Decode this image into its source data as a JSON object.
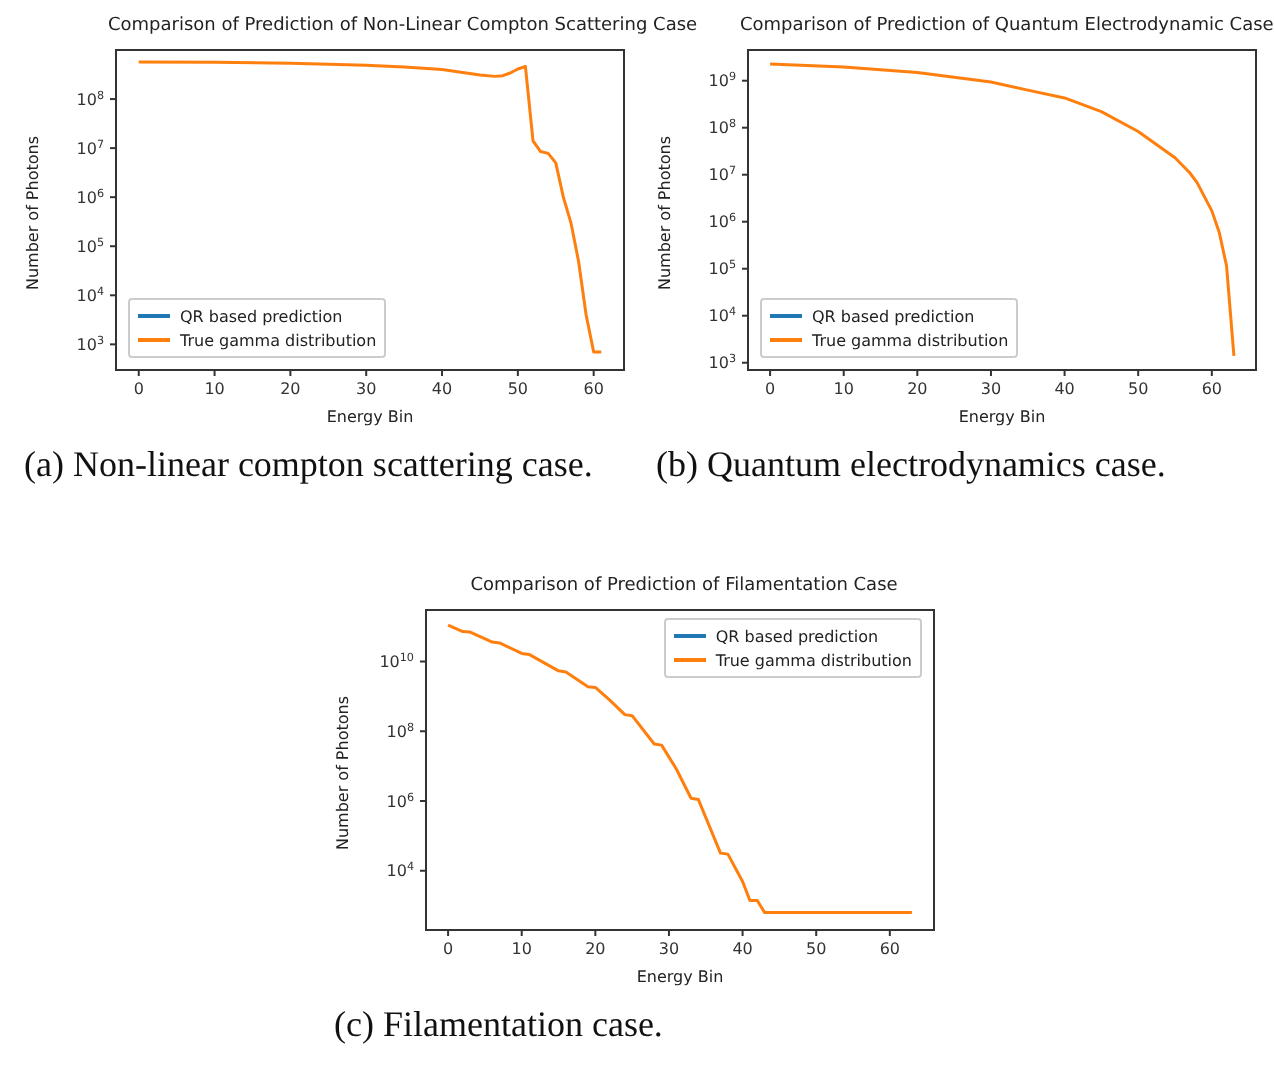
{
  "chart_data": [
    {
      "type": "line",
      "title": "Comparison of Prediction of Non-Linear Compton Scattering Case",
      "xlabel": "Energy Bin",
      "ylabel": "Number of Photons",
      "x": [
        0,
        10,
        20,
        30,
        35,
        40,
        45,
        47,
        48,
        49,
        50,
        51,
        52,
        53,
        54,
        55,
        56,
        57,
        58,
        59,
        60,
        61
      ],
      "series": [
        {
          "name": "QR based prediction",
          "color": "#1f77b4",
          "values": [
            null,
            null,
            null,
            null,
            null,
            null,
            null,
            null,
            null,
            null,
            null,
            null,
            null,
            null,
            null,
            null,
            null,
            null,
            null,
            null,
            null,
            null
          ]
        },
        {
          "name": "True gamma distribution",
          "color": "#ff7f0e",
          "values": [
            570000000,
            560000000,
            540000000,
            490000000,
            450000000,
            400000000,
            310000000,
            290000000,
            300000000,
            340000000,
            410000000,
            460000000,
            14000000,
            8500000,
            7800000,
            5000000,
            1000000,
            300000,
            50000,
            4000,
            700,
            700
          ]
        }
      ],
      "log": "y",
      "xlim": [
        -3,
        64
      ],
      "xticks": [
        0,
        10,
        20,
        30,
        40,
        50,
        60
      ],
      "ylim": [
        300,
        1000000000
      ],
      "yticks": [
        {
          "value": 1000,
          "label": "10$^{3}$"
        },
        {
          "value": 10000,
          "label": "10$^{4}$"
        },
        {
          "value": 100000,
          "label": "10$^{5}$"
        },
        {
          "value": 1000000,
          "label": "10$^{6}$"
        },
        {
          "value": 10000000,
          "label": "10$^{7}$"
        },
        {
          "value": 100000000,
          "label": "10$^{8}$"
        }
      ],
      "legend": "bottom left",
      "annotations": [
        "(a) Non-linear compton scattering case."
      ]
    },
    {
      "type": "line",
      "title": "Comparison of Prediction of Quantum Electrodynamic Case",
      "xlabel": "Energy Bin",
      "ylabel": "Number of Photons",
      "x": [
        0,
        10,
        20,
        30,
        35,
        40,
        45,
        50,
        55,
        57,
        58,
        60,
        61,
        62,
        63
      ],
      "series": [
        {
          "name": "QR based prediction",
          "color": "#1f77b4",
          "values": [
            null,
            null,
            null,
            null,
            null,
            null,
            null,
            null,
            null,
            null,
            null,
            null,
            null,
            null,
            null
          ]
        },
        {
          "name": "True gamma distribution",
          "color": "#ff7f0e",
          "values": [
            2260000000,
            1950000000,
            1500000000,
            940000000,
            630000000,
            430000000,
            220000000,
            83000000,
            23000000,
            11000000,
            6800000,
            1700000,
            600000,
            115000,
            1400
          ]
        }
      ],
      "log": "y",
      "xlim": [
        -3,
        66
      ],
      "xticks": [
        0,
        10,
        20,
        30,
        40,
        50,
        60
      ],
      "ylim": [
        700,
        4500000000
      ],
      "yticks": [
        {
          "value": 1000,
          "label": "10$^{3}$"
        },
        {
          "value": 10000,
          "label": "10$^{4}$"
        },
        {
          "value": 100000,
          "label": "10$^{5}$"
        },
        {
          "value": 1000000,
          "label": "10$^{6}$"
        },
        {
          "value": 10000000,
          "label": "10$^{7}$"
        },
        {
          "value": 100000000,
          "label": "10$^{8}$"
        },
        {
          "value": 1000000000,
          "label": "10$^{9}$"
        }
      ],
      "legend": "bottom left",
      "annotations": [
        "(b) Quantum electrodynamics case."
      ]
    },
    {
      "type": "line",
      "title": "Comparison of Prediction of Filamentation Case",
      "xlabel": "Energy Bin",
      "ylabel": "Number of Photons",
      "x": [
        0,
        2,
        3,
        6,
        7,
        10,
        11,
        15,
        16,
        19,
        20,
        22,
        24,
        25,
        28,
        29,
        31,
        33,
        34,
        37,
        38,
        40,
        41,
        42,
        43,
        63
      ],
      "series": [
        {
          "name": "QR based prediction",
          "color": "#1f77b4",
          "values": [
            null,
            null,
            null,
            null,
            null,
            null,
            null,
            null,
            null,
            null,
            null,
            null,
            null,
            null,
            null,
            null,
            null,
            null,
            null,
            null,
            null,
            null,
            null,
            null,
            null,
            null
          ]
        },
        {
          "name": "True gamma distribution",
          "color": "#ff7f0e",
          "values": [
            110000000000,
            72000000000,
            70000000000,
            36000000000,
            34000000000,
            17000000000,
            16000000000,
            5400000000,
            5000000000,
            1900000000,
            1800000000,
            770000000,
            300000000,
            280000000,
            43000000,
            40000000,
            8300000,
            1200000,
            1100000,
            32000,
            30000,
            4900,
            1400,
            1400,
            630,
            630
          ]
        }
      ],
      "log": "y",
      "xlim": [
        -3,
        66
      ],
      "xticks": [
        0,
        10,
        20,
        30,
        40,
        50,
        60
      ],
      "ylim": [
        200,
        300000000000
      ],
      "yticks": [
        {
          "value": 10000,
          "label": "10$^{4}$"
        },
        {
          "value": 1000000,
          "label": "10$^{6}$"
        },
        {
          "value": 100000000,
          "label": "10$^{8}$"
        },
        {
          "value": 10000000000,
          "label": "10$^{10}$"
        }
      ],
      "legend": "top right",
      "annotations": [
        "(c) Filamentation case."
      ]
    }
  ]
}
